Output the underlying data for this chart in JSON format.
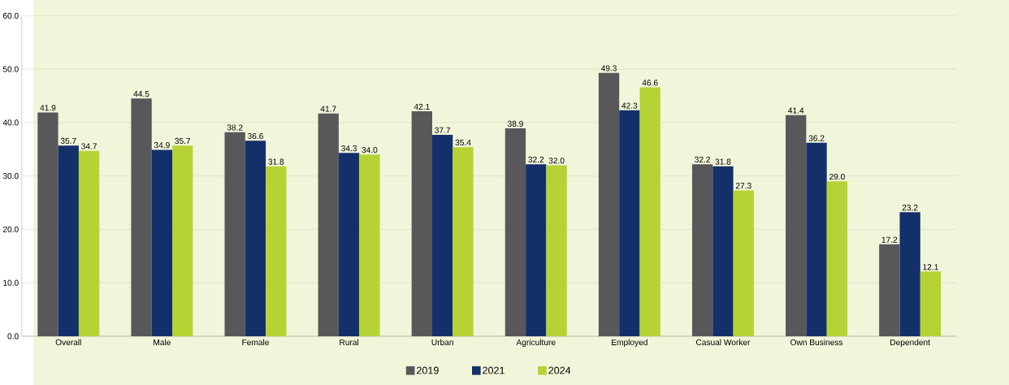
{
  "chart_data": {
    "type": "bar",
    "categories": [
      "Overall",
      "Male",
      "Female",
      "Rural",
      "Urban",
      "Agriculture",
      "Employed",
      "Casual Worker",
      "Own Business",
      "Dependent"
    ],
    "series": [
      {
        "name": "2019",
        "color": "#58585a",
        "values": [
          41.9,
          44.5,
          38.2,
          41.7,
          42.1,
          38.9,
          49.3,
          32.2,
          41.4,
          17.2
        ],
        "value_labels": [
          "41.9",
          "44.5",
          "38.2",
          "41.7",
          "42.1",
          "38.9",
          "49.3",
          "32.2",
          "41.4",
          "17.2"
        ]
      },
      {
        "name": "2021",
        "color": "#14306b",
        "values": [
          35.7,
          34.9,
          36.6,
          34.3,
          37.7,
          32.2,
          42.3,
          31.8,
          36.2,
          23.2
        ],
        "value_labels": [
          "35.7",
          "34.9",
          "36.6",
          "34.3",
          "37.7",
          "32.2",
          "42.3",
          "31.8",
          "36.2",
          "23.2"
        ]
      },
      {
        "name": "2024",
        "color": "#b5d334",
        "values": [
          34.7,
          35.7,
          31.8,
          34.0,
          35.4,
          32.0,
          46.6,
          27.3,
          29.0,
          12.1
        ],
        "value_labels": [
          "34.7",
          "35.7",
          "31.8",
          "34.0",
          "35.4",
          "32.0",
          "46.6",
          "27.3",
          "29.0",
          "12.1"
        ]
      }
    ],
    "ylim": [
      0,
      60
    ],
    "yticks": [
      {
        "value": 0,
        "label": "0.0"
      },
      {
        "value": 10,
        "label": "10.0"
      },
      {
        "value": 20,
        "label": "20.0"
      },
      {
        "value": 30,
        "label": "30.0"
      },
      {
        "value": 40,
        "label": "40.0"
      },
      {
        "value": 50,
        "label": "50.0"
      },
      {
        "value": 60,
        "label": "60.0"
      }
    ],
    "grid": "y",
    "legend": "bottom"
  }
}
